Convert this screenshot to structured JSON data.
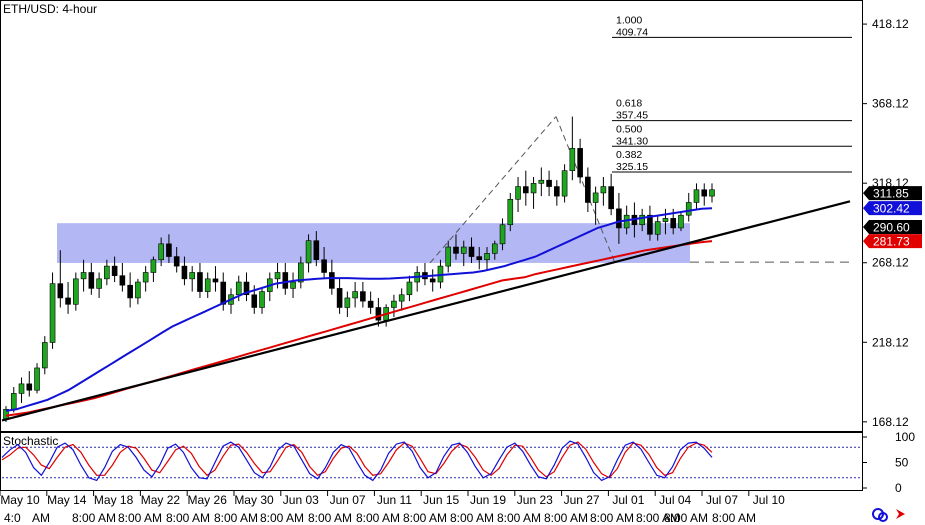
{
  "chart_data": {
    "type": "candlestick",
    "title": "ETH/USD: 4-hour",
    "y_ticks": [
      418.12,
      368.12,
      318.12,
      268.12,
      218.12,
      168.12
    ],
    "ylim": [
      163,
      432
    ],
    "x_date_labels": [
      "May 10",
      "May 14",
      "May 18",
      "May 22",
      "May 26",
      "May 30",
      "Jun 03",
      "Jun 07",
      "Jun 11",
      "Jun 15",
      "Jun 19",
      "Jun 23",
      "Jun 27",
      "Jul 01",
      "Jul 04",
      "Jul 07",
      "Jul 10"
    ],
    "x_time_labels": [
      "4:0",
      "AM",
      "8:00 AM",
      "8:00 AM",
      "8:00 AM",
      "8:00 AM",
      "8:00 AM",
      "8:00 AM",
      "8:00 AM",
      "8:00 AM",
      "8:00 AM",
      "8:00 AM",
      "8:00 AM",
      "8:00 AM",
      "8:00 AM",
      "8:00 AM",
      "8:00 AM"
    ],
    "price_tags": [
      {
        "value": "311.85",
        "bg": "#000000",
        "fg": "#ffffff",
        "y": 311.85
      },
      {
        "value": "302.42",
        "bg": "#1010d8",
        "fg": "#ffffff",
        "y": 302.42
      },
      {
        "value": "290.60",
        "bg": "#000000",
        "fg": "#ffffff",
        "y": 290.6
      },
      {
        "value": "281.73",
        "bg": "#e00000",
        "fg": "#ffffff",
        "y": 281.73
      }
    ],
    "fibonacci": [
      {
        "ratio": "1.000",
        "price": "409.74",
        "y": 409.74
      },
      {
        "ratio": "0.618",
        "price": "357.45",
        "y": 357.45
      },
      {
        "ratio": "0.500",
        "price": "341.30",
        "y": 341.3
      },
      {
        "ratio": "0.382",
        "price": "325.15",
        "y": 325.15
      }
    ],
    "range_zone": [
      268,
      293
    ],
    "horizontal_support": 268.5,
    "ohlc": [
      [
        170,
        178,
        168,
        176
      ],
      [
        176,
        190,
        174,
        186
      ],
      [
        186,
        196,
        180,
        192
      ],
      [
        192,
        200,
        184,
        188
      ],
      [
        188,
        205,
        186,
        202
      ],
      [
        202,
        222,
        198,
        218
      ],
      [
        218,
        262,
        214,
        255
      ],
      [
        255,
        276,
        240,
        246
      ],
      [
        246,
        256,
        236,
        242
      ],
      [
        242,
        262,
        238,
        258
      ],
      [
        258,
        270,
        250,
        262
      ],
      [
        262,
        268,
        248,
        252
      ],
      [
        252,
        262,
        246,
        258
      ],
      [
        258,
        270,
        254,
        266
      ],
      [
        266,
        272,
        256,
        260
      ],
      [
        260,
        268,
        250,
        254
      ],
      [
        254,
        262,
        240,
        246
      ],
      [
        246,
        258,
        242,
        256
      ],
      [
        256,
        266,
        250,
        262
      ],
      [
        262,
        272,
        256,
        270
      ],
      [
        270,
        284,
        266,
        280
      ],
      [
        280,
        286,
        268,
        272
      ],
      [
        272,
        278,
        262,
        266
      ],
      [
        266,
        272,
        254,
        258
      ],
      [
        258,
        266,
        250,
        262
      ],
      [
        262,
        268,
        246,
        250
      ],
      [
        250,
        262,
        246,
        258
      ],
      [
        258,
        266,
        250,
        256
      ],
      [
        256,
        262,
        238,
        242
      ],
      [
        242,
        252,
        236,
        248
      ],
      [
        248,
        260,
        244,
        256
      ],
      [
        256,
        262,
        244,
        248
      ],
      [
        248,
        254,
        236,
        240
      ],
      [
        240,
        252,
        236,
        250
      ],
      [
        250,
        262,
        244,
        258
      ],
      [
        258,
        268,
        252,
        262
      ],
      [
        262,
        268,
        248,
        252
      ],
      [
        252,
        262,
        246,
        256
      ],
      [
        256,
        272,
        252,
        268
      ],
      [
        268,
        286,
        262,
        282
      ],
      [
        282,
        288,
        266,
        270
      ],
      [
        270,
        278,
        258,
        262
      ],
      [
        262,
        270,
        248,
        252
      ],
      [
        252,
        258,
        236,
        240
      ],
      [
        240,
        250,
        234,
        246
      ],
      [
        246,
        256,
        240,
        250
      ],
      [
        250,
        256,
        240,
        244
      ],
      [
        244,
        250,
        236,
        240
      ],
      [
        240,
        246,
        228,
        232
      ],
      [
        232,
        242,
        228,
        240
      ],
      [
        240,
        248,
        234,
        244
      ],
      [
        244,
        252,
        238,
        248
      ],
      [
        248,
        260,
        244,
        256
      ],
      [
        256,
        266,
        250,
        262
      ],
      [
        262,
        268,
        254,
        258
      ],
      [
        258,
        264,
        250,
        256
      ],
      [
        256,
        270,
        252,
        266
      ],
      [
        266,
        282,
        262,
        278
      ],
      [
        278,
        286,
        270,
        274
      ],
      [
        274,
        282,
        266,
        278
      ],
      [
        278,
        284,
        268,
        272
      ],
      [
        272,
        278,
        264,
        270
      ],
      [
        270,
        278,
        264,
        274
      ],
      [
        274,
        282,
        270,
        280
      ],
      [
        280,
        296,
        276,
        292
      ],
      [
        292,
        312,
        288,
        308
      ],
      [
        308,
        322,
        300,
        316
      ],
      [
        316,
        326,
        304,
        312
      ],
      [
        312,
        322,
        302,
        318
      ],
      [
        318,
        328,
        310,
        320
      ],
      [
        320,
        326,
        310,
        316
      ],
      [
        316,
        320,
        304,
        310
      ],
      [
        310,
        330,
        306,
        326
      ],
      [
        326,
        360,
        320,
        340
      ],
      [
        340,
        346,
        318,
        322
      ],
      [
        322,
        328,
        300,
        306
      ],
      [
        306,
        316,
        292,
        312
      ],
      [
        312,
        322,
        304,
        316
      ],
      [
        316,
        324,
        298,
        302
      ],
      [
        302,
        312,
        280,
        290
      ],
      [
        290,
        304,
        286,
        298
      ],
      [
        298,
        306,
        284,
        292
      ],
      [
        292,
        302,
        288,
        298
      ],
      [
        298,
        304,
        282,
        286
      ],
      [
        286,
        298,
        282,
        294
      ],
      [
        294,
        302,
        286,
        296
      ],
      [
        296,
        302,
        286,
        290
      ],
      [
        290,
        300,
        288,
        298
      ],
      [
        298,
        312,
        294,
        306
      ],
      [
        306,
        318,
        302,
        314
      ],
      [
        314,
        318,
        304,
        310
      ],
      [
        310,
        318,
        306,
        314
      ]
    ],
    "sma_blue": [
      175,
      176,
      178,
      180,
      182,
      185,
      188,
      192,
      196,
      200,
      204,
      208,
      212,
      216,
      220,
      224,
      228,
      231,
      234,
      237,
      240,
      243,
      246,
      249,
      251,
      253,
      255,
      256,
      257,
      257.5,
      258,
      258.5,
      258.5,
      258.5,
      258.2,
      258,
      258,
      258.2,
      258.6,
      259,
      259.5,
      260,
      260.5,
      261,
      261.5,
      262,
      263,
      264.5,
      266,
      268,
      270,
      272,
      275,
      278,
      281,
      284,
      287,
      290,
      292,
      294,
      295,
      296,
      297,
      298,
      299,
      300,
      301,
      302,
      302.4
    ],
    "sma_red": [
      172,
      173,
      174,
      175.5,
      177,
      178.5,
      180,
      181.5,
      183,
      185,
      187,
      189,
      191,
      193,
      195,
      197,
      199,
      201,
      203,
      205,
      207,
      209,
      211,
      213,
      215,
      217,
      219,
      221,
      223,
      225,
      227,
      229,
      231,
      233,
      235,
      237,
      239,
      241,
      243,
      245,
      247,
      249,
      251,
      253,
      255,
      257,
      258,
      259,
      261,
      262.5,
      264,
      265.5,
      267,
      268.5,
      270,
      271.5,
      273,
      274.5,
      276,
      277,
      278,
      279,
      280,
      281,
      281.73
    ],
    "trendline": {
      "start": [
        0,
        169
      ],
      "end": [
        1,
        313
      ]
    },
    "swing": {
      "low": 268,
      "high": 360,
      "back": 268
    },
    "stochastic": {
      "label": "Stochastic",
      "y_ticks": [
        "100",
        "50",
        "0"
      ],
      "levels": [
        80,
        20
      ],
      "k": [
        60,
        75,
        85,
        70,
        40,
        25,
        50,
        80,
        88,
        75,
        45,
        20,
        15,
        40,
        72,
        85,
        80,
        60,
        35,
        22,
        45,
        78,
        86,
        70,
        40,
        20,
        18,
        50,
        82,
        90,
        80,
        55,
        30,
        20,
        42,
        75,
        88,
        82,
        55,
        28,
        18,
        40,
        70,
        85,
        78,
        50,
        25,
        15,
        35,
        68,
        86,
        90,
        72,
        40,
        20,
        30,
        62,
        84,
        88,
        70,
        42,
        20,
        28,
        55,
        80,
        88,
        72,
        45,
        22,
        18,
        45,
        78,
        92,
        86,
        60,
        30,
        15,
        22,
        55,
        84,
        90,
        76,
        50,
        25,
        20,
        42,
        75,
        88,
        90,
        78,
        60
      ],
      "d": [
        55,
        65,
        78,
        80,
        65,
        45,
        38,
        60,
        80,
        85,
        70,
        45,
        25,
        25,
        45,
        70,
        82,
        78,
        58,
        35,
        30,
        52,
        75,
        82,
        68,
        42,
        25,
        35,
        62,
        84,
        86,
        70,
        48,
        30,
        32,
        55,
        80,
        85,
        70,
        42,
        25,
        32,
        58,
        78,
        82,
        68,
        42,
        25,
        28,
        50,
        75,
        88,
        82,
        58,
        32,
        28,
        48,
        72,
        86,
        80,
        60,
        35,
        25,
        38,
        65,
        84,
        82,
        60,
        35,
        22,
        32,
        60,
        84,
        90,
        76,
        50,
        28,
        20,
        38,
        70,
        88,
        84,
        66,
        40,
        25,
        30,
        58,
        80,
        88,
        84,
        70
      ]
    }
  },
  "ui": {
    "refresh_icon_color": "#1010d8",
    "close_icon_color": "#e00000"
  }
}
